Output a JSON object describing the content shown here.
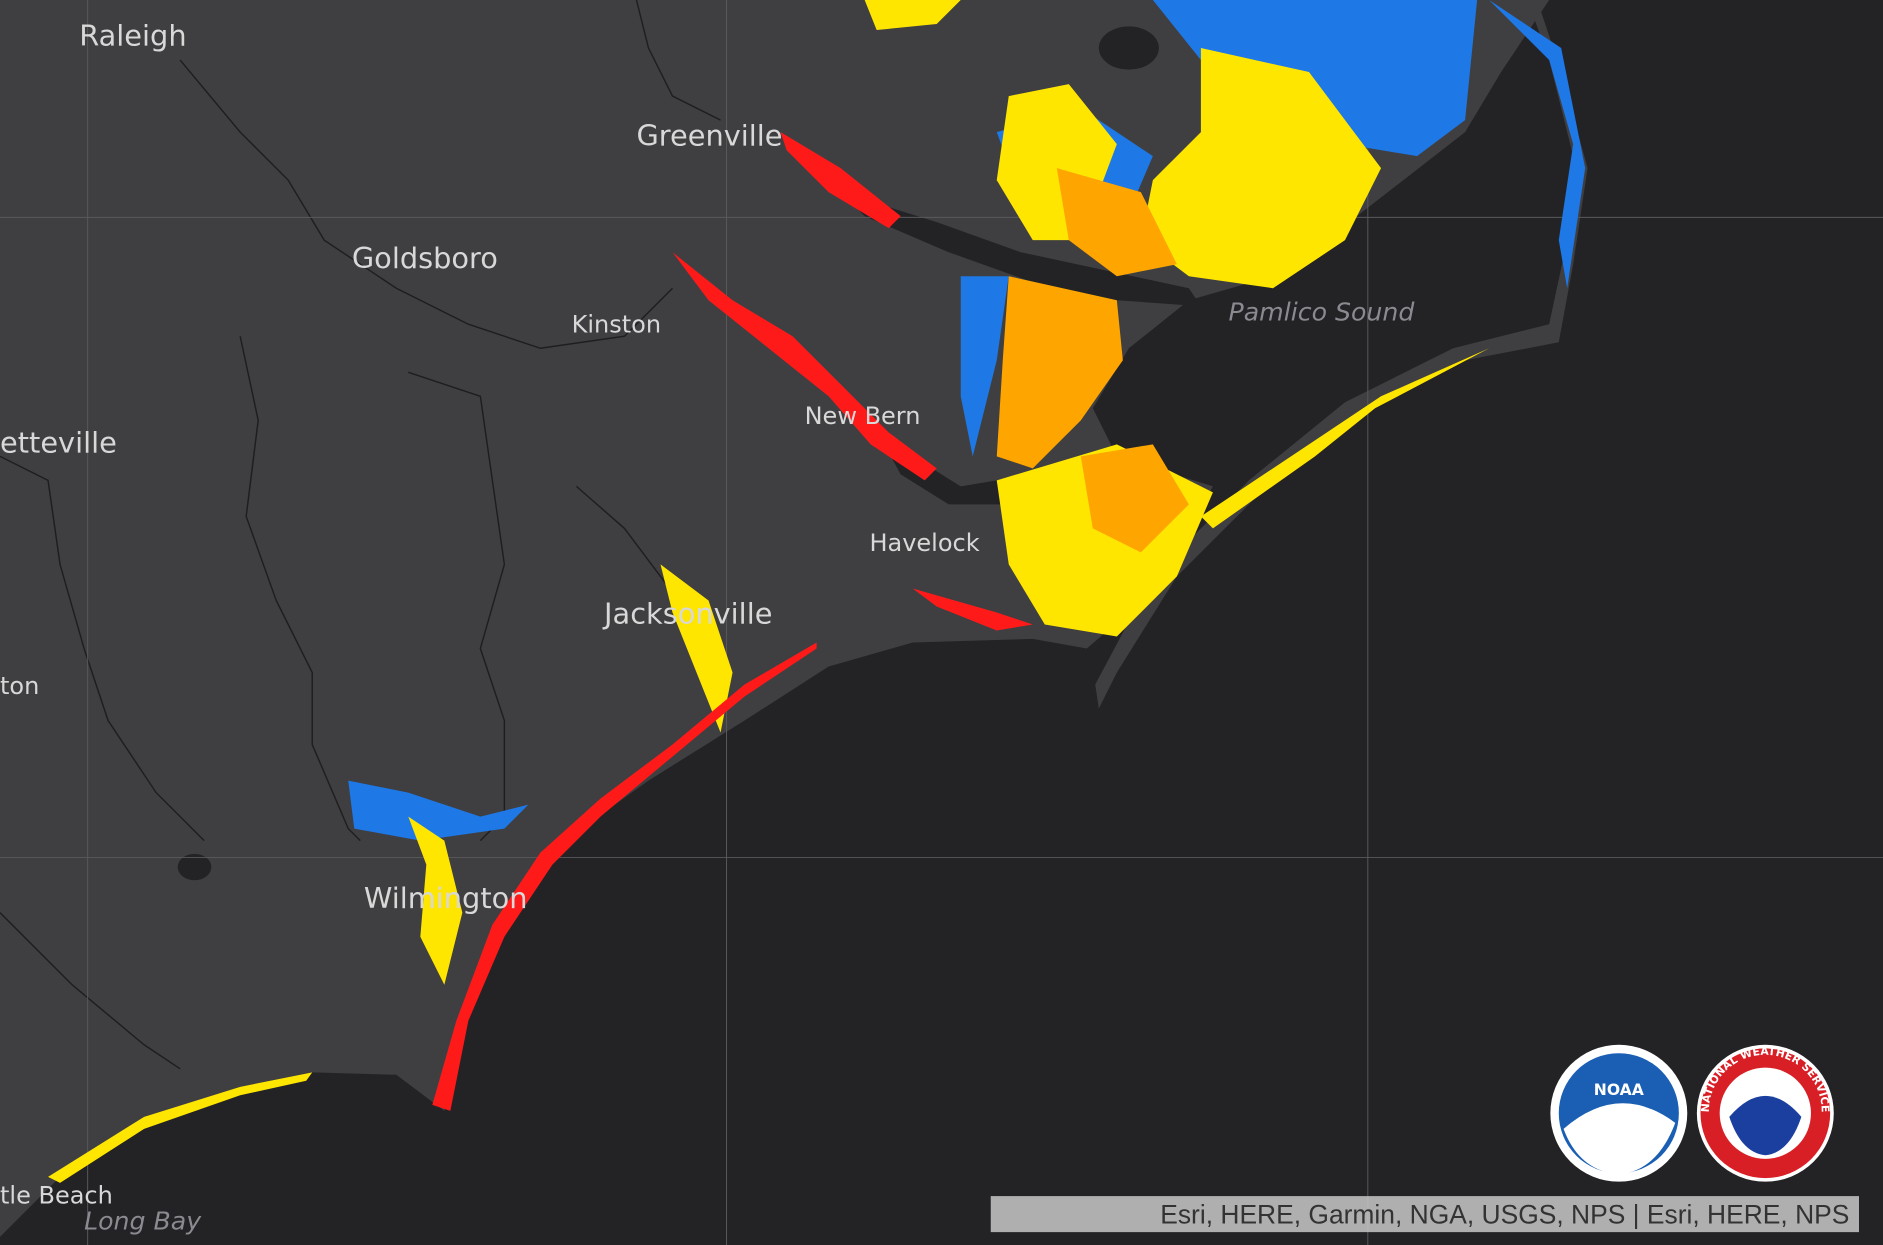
{
  "map": {
    "places": [
      "Raleigh",
      "Greenville",
      "Goldsboro",
      "Kinston",
      "etteville",
      "New Bern",
      "Havelock",
      "Jacksonville",
      "ton",
      "Wilmington",
      "tle Beach"
    ],
    "water": [
      "Pamlico Sound",
      "Long Bay"
    ],
    "attribution": "Esri, HERE, Garmin, NGA, USGS, NPS | Esri, HERE, NPS",
    "logos": [
      "NOAA",
      "NATIONAL WEATHER SERVICE"
    ]
  }
}
